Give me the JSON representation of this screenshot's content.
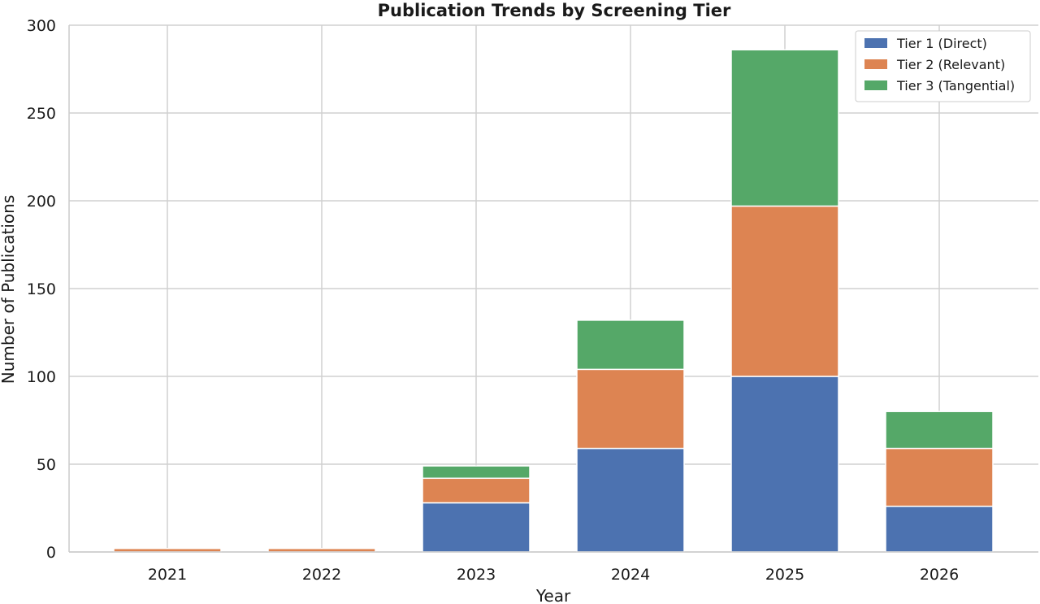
{
  "chart_data": {
    "type": "bar",
    "stacked": true,
    "title": "Publication Trends by Screening Tier",
    "xlabel": "Year",
    "ylabel": "Number of Publications",
    "categories": [
      "2021",
      "2022",
      "2023",
      "2024",
      "2025",
      "2026"
    ],
    "series": [
      {
        "name": "Tier 1 (Direct)",
        "color": "#4c72b0",
        "values": [
          0,
          0,
          28,
          59,
          100,
          26
        ]
      },
      {
        "name": "Tier 2 (Relevant)",
        "color": "#dd8452",
        "values": [
          2,
          2,
          14,
          45,
          97,
          33
        ]
      },
      {
        "name": "Tier 3 (Tangential)",
        "color": "#55a868",
        "values": [
          0,
          0,
          7,
          28,
          89,
          21
        ]
      }
    ],
    "ylim": [
      0,
      300
    ],
    "yticks": [
      0,
      50,
      100,
      150,
      200,
      250,
      300
    ],
    "grid": true,
    "legend_position": "top-right"
  }
}
